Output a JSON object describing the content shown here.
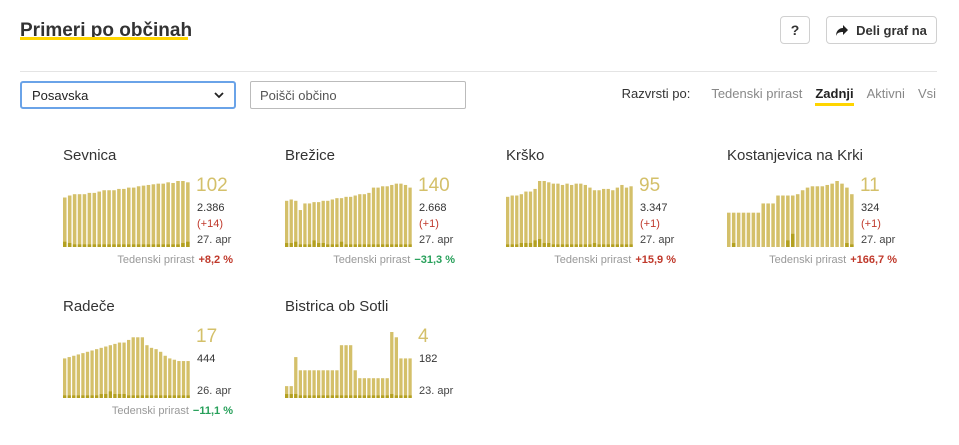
{
  "header": {
    "title": "Primeri po občinah",
    "help_label": "?",
    "share_label": "Deli graf na"
  },
  "filters": {
    "region_selected": "Posavska",
    "search_placeholder": "Poišči občino"
  },
  "sort": {
    "label": "Razvrsti po:",
    "options": [
      "Tedenski prirast",
      "Zadnji",
      "Aktivni",
      "Vsi"
    ],
    "active": "Zadnji"
  },
  "colors": {
    "bar": "#d4c06a",
    "bar_dark": "#b3a020",
    "accent": "#ffd500",
    "up": "#c0392b",
    "down": "#27a05a"
  },
  "growth_label": "Tedenski prirast",
  "municipalities": [
    {
      "name": "Sevnica",
      "latest": "102",
      "total": "2.386",
      "delta": "(+14)",
      "date": "27. apr",
      "growth": "+8,2 %",
      "trend": "up",
      "bars": [
        75,
        78,
        80,
        80,
        80,
        82,
        82,
        84,
        86,
        86,
        86,
        88,
        88,
        90,
        90,
        92,
        93,
        94,
        95,
        96,
        96,
        98,
        97,
        100,
        102,
        98
      ],
      "dark": [
        8,
        6,
        4,
        4,
        4,
        4,
        4,
        4,
        4,
        4,
        4,
        4,
        4,
        4,
        4,
        4,
        4,
        4,
        4,
        4,
        4,
        4,
        4,
        4,
        6,
        8
      ]
    },
    {
      "name": "Brežice",
      "latest": "140",
      "total": "2.668",
      "delta": "(+1)",
      "date": "27. apr",
      "growth": "−31,3 %",
      "trend": "down",
      "bars": [
        70,
        72,
        70,
        56,
        66,
        66,
        68,
        68,
        70,
        70,
        72,
        74,
        74,
        76,
        76,
        78,
        80,
        80,
        82,
        90,
        90,
        92,
        92,
        94,
        96,
        96,
        94,
        90
      ],
      "dark": [
        6,
        6,
        8,
        4,
        4,
        4,
        10,
        6,
        6,
        4,
        4,
        4,
        8,
        4,
        4,
        4,
        4,
        4,
        4,
        4,
        4,
        4,
        4,
        4,
        4,
        4,
        4,
        4
      ]
    },
    {
      "name": "Krško",
      "latest": "95",
      "total": "3.347",
      "delta": "(+1)",
      "date": "27. apr",
      "growth": "+15,9 %",
      "trend": "up",
      "bars": [
        76,
        78,
        78,
        80,
        84,
        84,
        88,
        100,
        100,
        98,
        96,
        96,
        94,
        96,
        94,
        96,
        96,
        94,
        90,
        86,
        86,
        88,
        88,
        86,
        90,
        94,
        90,
        92
      ],
      "dark": [
        4,
        4,
        4,
        6,
        6,
        6,
        10,
        12,
        6,
        6,
        4,
        4,
        4,
        4,
        4,
        4,
        4,
        4,
        4,
        6,
        4,
        4,
        4,
        4,
        4,
        4,
        4,
        4
      ]
    },
    {
      "name": "Kostanjevica na Krki",
      "latest": "11",
      "total": "324",
      "delta": "(+1)",
      "date": "27. apr",
      "growth": "+166,7 %",
      "trend": "up",
      "bars": [
        52,
        52,
        52,
        52,
        52,
        52,
        52,
        66,
        66,
        66,
        78,
        78,
        78,
        78,
        80,
        86,
        90,
        92,
        92,
        92,
        94,
        96,
        100,
        96,
        90,
        80
      ],
      "dark": [
        0,
        6,
        0,
        0,
        0,
        0,
        0,
        0,
        0,
        0,
        0,
        0,
        10,
        20,
        0,
        0,
        0,
        0,
        0,
        0,
        0,
        0,
        0,
        0,
        6,
        4
      ]
    },
    {
      "name": "Radeče",
      "latest": "17",
      "total": "444",
      "delta": "",
      "date": "26. apr",
      "growth": "−11,1 %",
      "trend": "down",
      "bars": [
        60,
        62,
        64,
        66,
        68,
        70,
        72,
        74,
        76,
        78,
        80,
        82,
        84,
        84,
        88,
        92,
        92,
        92,
        80,
        76,
        74,
        70,
        64,
        60,
        58,
        56,
        56,
        56
      ],
      "dark": [
        4,
        4,
        4,
        4,
        4,
        4,
        4,
        4,
        6,
        6,
        10,
        6,
        6,
        6,
        4,
        4,
        4,
        4,
        4,
        4,
        4,
        4,
        4,
        4,
        4,
        4,
        4,
        4
      ]
    },
    {
      "name": "Bistrica ob Sotli",
      "latest": "4",
      "total": "182",
      "delta": "",
      "date": "23. apr",
      "growth": "",
      "trend": "",
      "bars": [
        18,
        18,
        62,
        42,
        42,
        42,
        42,
        42,
        42,
        42,
        42,
        42,
        80,
        80,
        80,
        42,
        30,
        30,
        30,
        30,
        30,
        30,
        30,
        100,
        92,
        60,
        60,
        60
      ],
      "dark": [
        6,
        6,
        6,
        4,
        4,
        4,
        4,
        4,
        4,
        4,
        4,
        4,
        4,
        4,
        4,
        4,
        4,
        4,
        4,
        4,
        4,
        4,
        4,
        6,
        4,
        4,
        4,
        4
      ]
    }
  ]
}
